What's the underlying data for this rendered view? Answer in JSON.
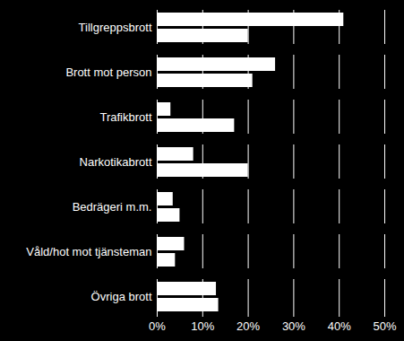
{
  "chart_data": {
    "type": "bar",
    "orientation": "horizontal",
    "grid": true,
    "categories": [
      "Tillgreppsbrott",
      "Brott mot person",
      "Trafikbrott",
      "Narkotikabrott",
      "Bedrägeri m.m.",
      "Våld/hot mot tjänsteman",
      "Övriga brott"
    ],
    "series": [
      {
        "color": "#ffffff",
        "values": [
          41,
          26,
          3,
          8,
          3.5,
          6,
          13
        ]
      },
      {
        "color": "#ffffff",
        "values": [
          20,
          21,
          17,
          20,
          5,
          4,
          13.5
        ]
      }
    ],
    "xlim": [
      0,
      50
    ],
    "xticks": [
      {
        "value": 0,
        "label": "0%"
      },
      {
        "value": 10,
        "label": "10%"
      },
      {
        "value": 20,
        "label": "20%"
      },
      {
        "value": 30,
        "label": "30%"
      },
      {
        "value": 40,
        "label": "40%"
      },
      {
        "value": 50,
        "label": "50%"
      }
    ]
  }
}
